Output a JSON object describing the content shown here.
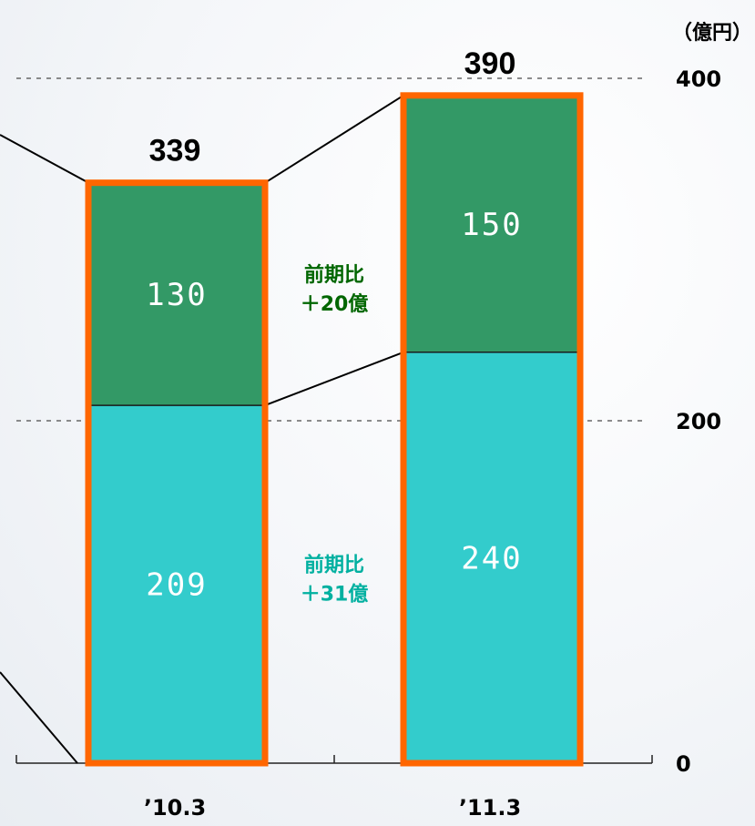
{
  "unit_label": "（億円）",
  "chart_data": {
    "type": "bar",
    "stacked": true,
    "categories": [
      "’10.3",
      "’11.3"
    ],
    "series": [
      {
        "values": [
          209,
          240
        ],
        "color": "#33CCCC"
      },
      {
        "values": [
          130,
          150
        ],
        "color": "#339966"
      }
    ],
    "totals": [
      339,
      390
    ],
    "yticks": [
      0,
      200,
      400
    ],
    "ylim": [
      0,
      400
    ],
    "grid": true,
    "bar_outline_color": "#FF6600",
    "annotations": [
      {
        "lines": [
          "前期比",
          "＋20億"
        ],
        "color": "#006600"
      },
      {
        "lines": [
          "前期比",
          "＋31億"
        ],
        "color": "#00B0A0"
      }
    ]
  }
}
